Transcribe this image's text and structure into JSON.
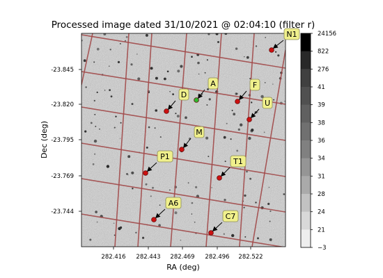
{
  "title": "Processed image dated 31/10/2021 @ 02:04:10 (filter r)",
  "chart_data": {
    "type": "scatter",
    "xlabel": "RA (deg)",
    "ylabel": "Dec (deg)",
    "xticks": [
      "282.416",
      "282.443",
      "282.469",
      "282.496",
      "282.522"
    ],
    "yticks": [
      "-23.845",
      "-23.820",
      "-23.795",
      "-23.769",
      "-23.744"
    ],
    "grid": "on",
    "colorbar_ticks": [
      "24156",
      "822",
      "276",
      "41",
      "39",
      "38",
      "36",
      "34",
      "31",
      "28",
      "24",
      "21",
      "−3"
    ],
    "markers": [
      {
        "name": "N1",
        "ra": 282.56,
        "dec": -23.857,
        "color": "#cc1111"
      },
      {
        "name": "A",
        "ra": 282.504,
        "dec": -23.821,
        "color": "#2eb82e",
        "arrow": "#b3c78a"
      },
      {
        "name": "F",
        "ra": 282.546,
        "dec": -23.821,
        "color": "#cc1111"
      },
      {
        "name": "D",
        "ra": 282.509,
        "dec": -23.817,
        "color": "#cc1111"
      },
      {
        "name": "U",
        "ra": 282.554,
        "dec": -23.808,
        "color": "#cc1111"
      },
      {
        "name": "M",
        "ra": 282.533,
        "dec": -23.789,
        "color": "#cc1111"
      },
      {
        "name": "P1",
        "ra": 282.509,
        "dec": -23.769,
        "color": "#cc1111"
      },
      {
        "name": "T1",
        "ra": 282.563,
        "dec": -23.776,
        "color": "#cc1111"
      },
      {
        "name": "A6",
        "ra": 282.529,
        "dec": -23.745,
        "color": "#cc1111"
      },
      {
        "name": "C7",
        "ra": 282.57,
        "dec": -23.743,
        "color": "#cc1111"
      }
    ]
  },
  "colors": {
    "grid": "#a24a4a",
    "label_bg": "#f0f08c",
    "label_border": "#8a8a55"
  }
}
